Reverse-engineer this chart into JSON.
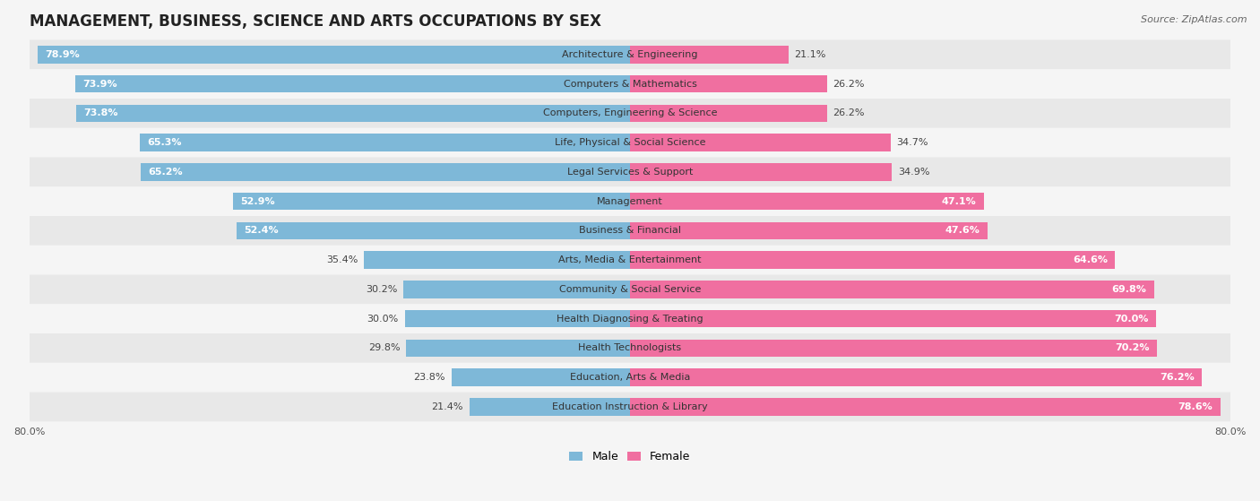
{
  "title": "MANAGEMENT, BUSINESS, SCIENCE AND ARTS OCCUPATIONS BY SEX",
  "source": "Source: ZipAtlas.com",
  "categories": [
    "Architecture & Engineering",
    "Computers & Mathematics",
    "Computers, Engineering & Science",
    "Life, Physical & Social Science",
    "Legal Services & Support",
    "Management",
    "Business & Financial",
    "Arts, Media & Entertainment",
    "Community & Social Service",
    "Health Diagnosing & Treating",
    "Health Technologists",
    "Education, Arts & Media",
    "Education Instruction & Library"
  ],
  "male": [
    78.9,
    73.9,
    73.8,
    65.3,
    65.2,
    52.9,
    52.4,
    35.4,
    30.2,
    30.0,
    29.8,
    23.8,
    21.4
  ],
  "female": [
    21.1,
    26.2,
    26.2,
    34.7,
    34.9,
    47.1,
    47.6,
    64.6,
    69.8,
    70.0,
    70.2,
    76.2,
    78.6
  ],
  "male_color": "#7eb8d8",
  "female_color": "#f06fa0",
  "male_color_light": "#aed0e8",
  "female_color_light": "#f7afc8",
  "row_colors": [
    "#e8e8e8",
    "#f5f5f5"
  ],
  "axis_limit": 80.0,
  "legend_labels": [
    "Male",
    "Female"
  ],
  "title_fontsize": 12,
  "label_fontsize": 8,
  "value_fontsize": 8,
  "source_fontsize": 8,
  "white_text_threshold_male": 40,
  "white_text_threshold_female": 40
}
